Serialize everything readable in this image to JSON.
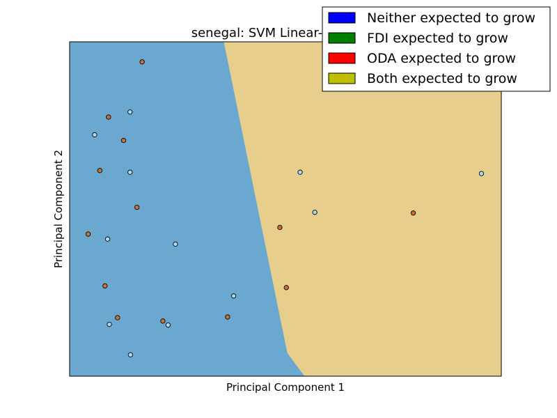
{
  "chart_data": {
    "type": "scatter",
    "title": "senegal: SVM Linear-Classifier",
    "xlabel": "Principal Component 1",
    "ylabel": "Principal Component 2",
    "xlim": [
      0,
      100
    ],
    "ylim": [
      0,
      100
    ],
    "grid": false,
    "legend_placement": "top-right",
    "show_ticks": false,
    "regions": [
      {
        "name": "Neither expected to grow",
        "color": "#6aa8cf",
        "polygon": [
          [
            0,
            100
          ],
          [
            35.8,
            100
          ],
          [
            50.5,
            7
          ],
          [
            54.5,
            0
          ],
          [
            0,
            0
          ]
        ]
      },
      {
        "name": "Both expected to grow",
        "color": "#e8ce8c",
        "polygon": [
          [
            35.8,
            100
          ],
          [
            100,
            100
          ],
          [
            100,
            0
          ],
          [
            54.5,
            0
          ],
          [
            50.5,
            7
          ]
        ]
      }
    ],
    "legend": [
      {
        "label": "Neither expected to grow",
        "color": "#0000ff"
      },
      {
        "label": "FDI expected to grow",
        "color": "#008000"
      },
      {
        "label": "ODA expected to grow",
        "color": "#ff0000"
      },
      {
        "label": "Both expected to grow",
        "color": "#bfbf00"
      }
    ],
    "series": [
      {
        "category": "Neither expected to grow",
        "color": "#aad8f0",
        "points": [
          [
            14.0,
            79.0
          ],
          [
            5.8,
            72.2
          ],
          [
            14.0,
            61.0
          ],
          [
            8.8,
            41.0
          ],
          [
            24.5,
            39.5
          ],
          [
            53.4,
            61.0
          ],
          [
            95.4,
            60.6
          ],
          [
            38.0,
            24.0
          ],
          [
            9.2,
            15.5
          ],
          [
            22.8,
            15.3
          ],
          [
            14.1,
            6.4
          ],
          [
            56.8,
            49.0
          ]
        ]
      },
      {
        "category": "Both expected to grow",
        "color": "#c8703c",
        "points": [
          [
            16.8,
            94.0
          ],
          [
            9.0,
            77.5
          ],
          [
            12.5,
            70.5
          ],
          [
            7.0,
            61.5
          ],
          [
            15.6,
            50.5
          ],
          [
            4.3,
            42.5
          ],
          [
            8.2,
            27.0
          ],
          [
            48.7,
            44.5
          ],
          [
            79.6,
            48.8
          ],
          [
            50.2,
            26.5
          ],
          [
            11.1,
            17.5
          ],
          [
            21.6,
            16.5
          ],
          [
            36.6,
            17.7
          ]
        ]
      }
    ]
  }
}
